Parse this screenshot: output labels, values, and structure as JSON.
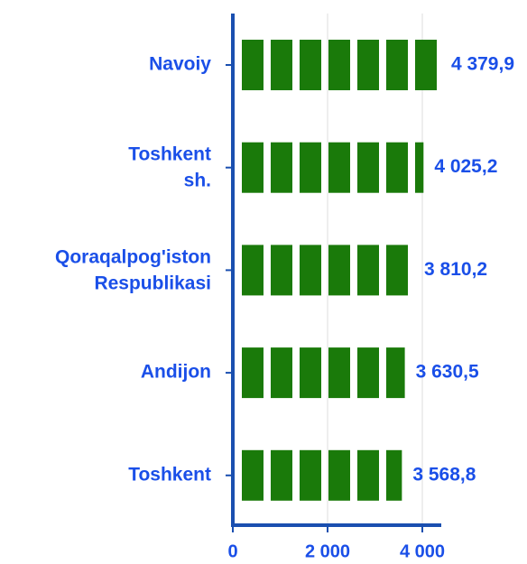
{
  "chart_data": {
    "type": "bar",
    "orientation": "horizontal",
    "categories": [
      "Navoiy",
      "Toshkent sh.",
      "Qoraqalpog'iston Respublikasi",
      "Andijon",
      "Toshkent"
    ],
    "values": [
      4379.9,
      4025.2,
      3810.2,
      3630.5,
      3568.8
    ],
    "value_labels": [
      "4 379,9",
      "4 025,2",
      "3 810,2",
      "3 630,5",
      "3 568,8"
    ],
    "color": "#1a7a0a",
    "xlim": [
      0,
      4400
    ],
    "xticks": [
      0,
      {
        "value": 2000,
        "label": "2 000"
      },
      {
        "value": 4000,
        "label": "4 000"
      }
    ],
    "grid": true
  }
}
